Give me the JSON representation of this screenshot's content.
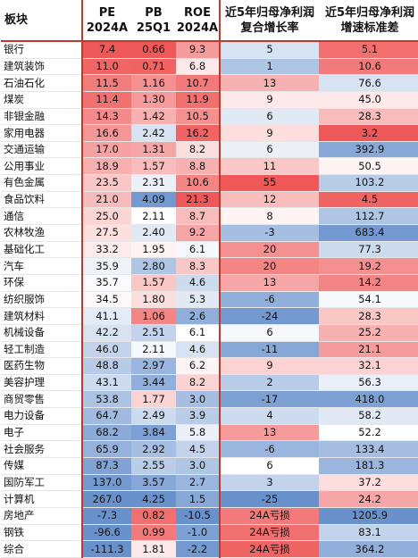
{
  "headers": {
    "sector": "板块",
    "pe_line1": "PE",
    "pe_line2": "2024A",
    "pb_line1": "PB",
    "pb_line2": "25Q1",
    "roe_line1": "ROE",
    "roe_line2": "2024A",
    "growth_line1": "近5年归母净利润",
    "growth_line2": "复合增长率",
    "std_line1": "近5年归母净利润",
    "std_line2": "增速标准差"
  },
  "rows": [
    {
      "sector": "银行",
      "pe": "7.4",
      "pb": "0.66",
      "roe": "9.3",
      "growth": "5",
      "std": "5.1"
    },
    {
      "sector": "建筑装饰",
      "pe": "11.0",
      "pb": "0.71",
      "roe": "6.8",
      "growth": "1",
      "std": "10.6"
    },
    {
      "sector": "石油石化",
      "pe": "11.5",
      "pb": "1.16",
      "roe": "10.7",
      "growth": "13",
      "std": "76.6"
    },
    {
      "sector": "煤炭",
      "pe": "11.4",
      "pb": "1.30",
      "roe": "11.9",
      "growth": "9",
      "std": "45.0"
    },
    {
      "sector": "非银金融",
      "pe": "14.3",
      "pb": "1.42",
      "roe": "10.5",
      "growth": "6",
      "std": "28.3"
    },
    {
      "sector": "家用电器",
      "pe": "16.6",
      "pb": "2.42",
      "roe": "16.2",
      "growth": "9",
      "std": "3.2"
    },
    {
      "sector": "交通运输",
      "pe": "17.0",
      "pb": "1.31",
      "roe": "8.2",
      "growth": "6",
      "std": "392.9"
    },
    {
      "sector": "公用事业",
      "pe": "18.9",
      "pb": "1.57",
      "roe": "8.8",
      "growth": "11",
      "std": "50.5"
    },
    {
      "sector": "有色金属",
      "pe": "23.5",
      "pb": "2.31",
      "roe": "10.6",
      "growth": "55",
      "std": "103.2"
    },
    {
      "sector": "食品饮料",
      "pe": "21.0",
      "pb": "4.09",
      "roe": "21.3",
      "growth": "12",
      "std": "4.5"
    },
    {
      "sector": "通信",
      "pe": "25.0",
      "pb": "2.11",
      "roe": "8.7",
      "growth": "8",
      "std": "112.7"
    },
    {
      "sector": "农林牧渔",
      "pe": "27.5",
      "pb": "2.40",
      "roe": "9.2",
      "growth": "-3",
      "std": "683.4"
    },
    {
      "sector": "基础化工",
      "pe": "33.2",
      "pb": "1.95",
      "roe": "6.1",
      "growth": "20",
      "std": "77.3"
    },
    {
      "sector": "汽车",
      "pe": "35.9",
      "pb": "2.80",
      "roe": "8.3",
      "growth": "20",
      "std": "19.2"
    },
    {
      "sector": "环保",
      "pe": "35.7",
      "pb": "1.57",
      "roe": "4.6",
      "growth": "13",
      "std": "14.2"
    },
    {
      "sector": "纺织服饰",
      "pe": "34.5",
      "pb": "1.80",
      "roe": "5.3",
      "growth": "-6",
      "std": "54.1"
    },
    {
      "sector": "建筑材料",
      "pe": "41.1",
      "pb": "1.06",
      "roe": "2.6",
      "growth": "-24",
      "std": "28.3"
    },
    {
      "sector": "机械设备",
      "pe": "42.2",
      "pb": "2.51",
      "roe": "6.1",
      "growth": "6",
      "std": "25.2"
    },
    {
      "sector": "轻工制造",
      "pe": "46.0",
      "pb": "2.11",
      "roe": "4.6",
      "growth": "-11",
      "std": "21.1"
    },
    {
      "sector": "医药生物",
      "pe": "48.8",
      "pb": "2.97",
      "roe": "6.2",
      "growth": "9",
      "std": "32.1"
    },
    {
      "sector": "美容护理",
      "pe": "43.1",
      "pb": "3.44",
      "roe": "8.2",
      "growth": "2",
      "std": "56.3"
    },
    {
      "sector": "商贸零售",
      "pe": "53.8",
      "pb": "1.77",
      "roe": "3.0",
      "growth": "-17",
      "std": "418.0"
    },
    {
      "sector": "电力设备",
      "pe": "64.7",
      "pb": "2.49",
      "roe": "3.9",
      "growth": "4",
      "std": "58.2"
    },
    {
      "sector": "电子",
      "pe": "68.2",
      "pb": "3.84",
      "roe": "5.8",
      "growth": "13",
      "std": "52.2"
    },
    {
      "sector": "社会服务",
      "pe": "65.9",
      "pb": "2.92",
      "roe": "4.5",
      "growth": "-6",
      "std": "133.4"
    },
    {
      "sector": "传媒",
      "pe": "87.3",
      "pb": "2.55",
      "roe": "3.0",
      "growth": "6",
      "std": "181.3"
    },
    {
      "sector": "国防军工",
      "pe": "137.0",
      "pb": "3.57",
      "roe": "2.7",
      "growth": "3",
      "std": "37.2"
    },
    {
      "sector": "计算机",
      "pe": "267.0",
      "pb": "4.25",
      "roe": "1.5",
      "growth": "-25",
      "std": "24.2"
    },
    {
      "sector": "房地产",
      "pe": "-7.3",
      "pb": "0.82",
      "roe": "-10.5",
      "growth": "24A亏损",
      "std": "1205.9"
    },
    {
      "sector": "钢铁",
      "pe": "-96.6",
      "pb": "0.99",
      "roe": "-1.0",
      "growth": "24A亏损",
      "std": "83.1"
    },
    {
      "sector": "综合",
      "pe": "-111.3",
      "pb": "1.81",
      "roe": "-2.2",
      "growth": "24A亏损",
      "std": "364.2"
    }
  ],
  "colors": {
    "red_strong": "#ec3b3b",
    "red_light": "#fde3e3",
    "white": "#ffffff",
    "blue_light": "#dce6f4",
    "blue_strong": "#4f7fc4",
    "separator": "#c0392b"
  }
}
